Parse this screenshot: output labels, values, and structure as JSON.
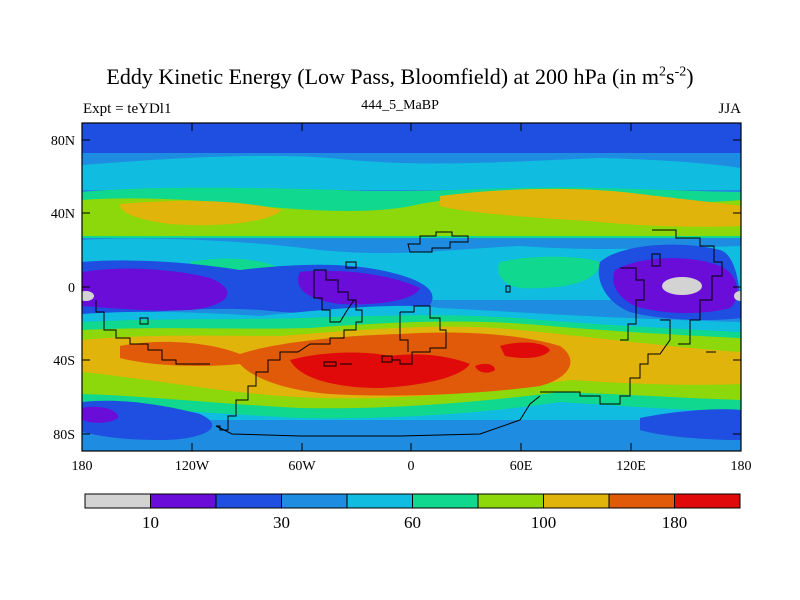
{
  "title": {
    "main": "Eddy Kinetic Energy (Low Pass, Bloomfield) at 200 hPa (in m",
    "sup1": "2",
    "mid": "s",
    "sup2": "-2",
    "end": ")"
  },
  "subtitle": {
    "left": "Expt = teYDl1",
    "center": "444_5_MaBP",
    "right": "JJA"
  },
  "axes": {
    "lat_ticks": [
      "80N",
      "40N",
      "0",
      "40S",
      "80S"
    ],
    "lon_ticks": [
      "180",
      "120W",
      "60W",
      "0",
      "60E",
      "120E",
      "180"
    ]
  },
  "colorbar": {
    "colors": [
      "#d3d3d3",
      "#6a0dd8",
      "#1e4fe0",
      "#1e8ce0",
      "#10bce0",
      "#10d88e",
      "#8cd80a",
      "#e0b40a",
      "#e05a0a",
      "#e00a0a"
    ],
    "labels": [
      "10",
      "30",
      "60",
      "100",
      "180"
    ]
  },
  "palette": {
    "lt10": "#d3d3d3",
    "c10": "#6a0dd8",
    "c20": "#1e4fe0",
    "c30": "#1e8ce0",
    "c45": "#10bce0",
    "c60": "#10d88e",
    "c80": "#8cd80a",
    "c100": "#e0b40a",
    "c140": "#e05a0a",
    "c180": "#e00a0a"
  }
}
